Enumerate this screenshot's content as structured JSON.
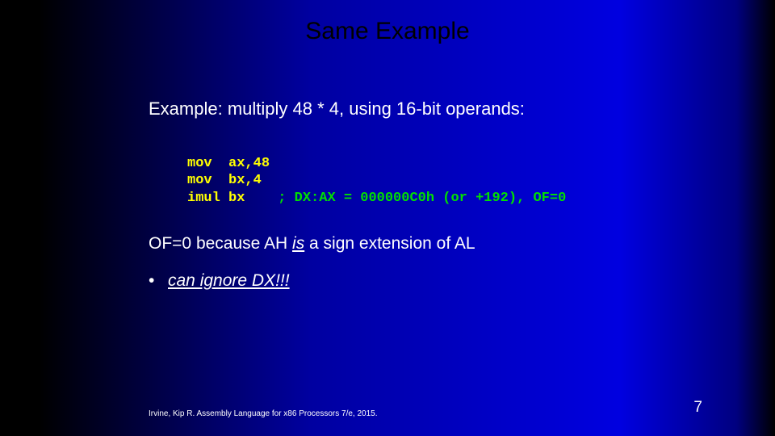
{
  "title": "Same Example",
  "subtitle": "Example: multiply 48 * 4, using 16-bit operands:",
  "code": {
    "line1": "mov  ax,48",
    "line2": "mov  bx,4",
    "line3a": "imul bx",
    "line3b": "    ; DX:AX = 000000C0h (or +192), OF=0"
  },
  "note": {
    "pre": "OF=0 because AH ",
    "emph": "is",
    "post": " a sign extension of AL"
  },
  "bullet": {
    "marker": "•",
    "text": "can ignore DX!!!"
  },
  "footer": "Irvine, Kip R. Assembly Language for x86 Processors 7/e, 2015.",
  "pagenum": "7"
}
